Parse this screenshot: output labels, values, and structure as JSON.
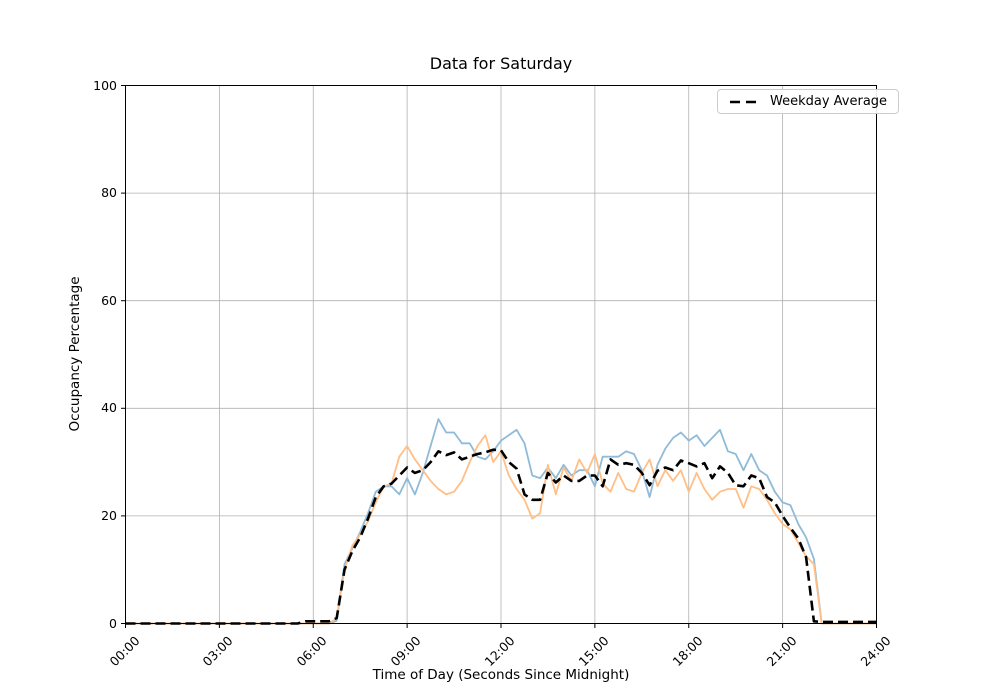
{
  "chart_data": {
    "type": "line",
    "title": "Data for Saturday",
    "xlabel": "Time of Day (Seconds Since Midnight)",
    "ylabel": "Occupancy Percentage",
    "grid": true,
    "legend_position": "upper right",
    "legend_entries": [
      "Weekday Average"
    ],
    "xlim_seconds": [
      0,
      86400
    ],
    "ylim": [
      0,
      100
    ],
    "x_tick_seconds": [
      0,
      10800,
      21600,
      32400,
      43200,
      54000,
      64800,
      75600,
      86400
    ],
    "x_tick_labels": [
      "00:00",
      "03:00",
      "06:00",
      "09:00",
      "12:00",
      "15:00",
      "18:00",
      "21:00",
      "24:00"
    ],
    "y_ticks": [
      0,
      20,
      40,
      60,
      80,
      100
    ],
    "x_step_seconds": 900,
    "x_unit": "seconds since midnight",
    "colors": {
      "grid": "#b0b0b0",
      "axis": "#000000"
    },
    "series": [
      {
        "name": "saturday-sample-1",
        "color": "#8FBBD9",
        "style": "solid",
        "in_legend": false,
        "values": [
          0,
          0,
          0,
          0,
          0,
          0,
          0,
          0,
          0,
          0,
          0,
          0,
          0,
          0,
          0,
          0,
          0,
          0,
          0,
          0,
          0,
          0,
          0,
          0,
          0,
          0,
          0,
          0.5,
          11,
          14,
          17,
          20.5,
          24.5,
          25.5,
          25.5,
          24,
          27,
          24,
          28,
          33,
          38,
          35.5,
          35.5,
          33.5,
          33.5,
          31,
          30.5,
          32,
          34,
          35,
          36,
          33.5,
          27.5,
          27,
          29,
          27,
          29.5,
          27.5,
          28.5,
          28.5,
          25.5,
          31,
          31,
          31,
          32,
          31.5,
          28.5,
          23.5,
          29.5,
          32.5,
          34.5,
          35.5,
          34,
          35,
          33,
          34.5,
          36,
          32,
          31.5,
          28.5,
          31.5,
          28.5,
          27.5,
          24.5,
          22.5,
          22,
          18.5,
          16,
          12,
          0,
          0,
          0,
          0,
          0,
          0,
          0,
          0
        ]
      },
      {
        "name": "saturday-sample-2",
        "color": "#FFBF86",
        "style": "solid",
        "in_legend": false,
        "values": [
          0,
          0,
          0,
          0,
          0,
          0,
          0,
          0,
          0,
          0,
          0,
          0,
          0,
          0,
          0,
          0,
          0,
          0,
          0,
          0,
          0,
          0,
          0,
          0,
          0,
          0,
          0,
          1,
          10,
          14.5,
          16.5,
          19,
          22.5,
          25.5,
          26,
          31,
          33,
          30.5,
          28.5,
          26.5,
          25,
          24,
          24.5,
          26.5,
          30,
          33,
          35,
          30,
          32,
          27.5,
          25,
          23,
          19.5,
          20.5,
          29.5,
          24,
          29,
          26.5,
          30.5,
          28,
          31.5,
          26,
          24.5,
          28,
          25,
          24.5,
          28,
          30.5,
          25.5,
          28.5,
          26.5,
          28.5,
          24.5,
          28,
          25,
          23,
          24.5,
          25,
          25,
          21.5,
          25.5,
          25,
          23,
          20.5,
          18.5,
          17.5,
          15,
          12.5,
          11,
          0,
          0,
          0,
          0,
          0,
          0,
          0,
          0
        ]
      },
      {
        "name": "weekday-average",
        "label": "Weekday Average",
        "color": "#000000",
        "style": "dashed",
        "in_legend": true,
        "values": [
          0,
          0,
          0,
          0,
          0,
          0,
          0,
          0,
          0,
          0,
          0,
          0,
          0,
          0,
          0,
          0,
          0,
          0,
          0,
          0,
          0,
          0,
          0,
          0.4,
          0.4,
          0.4,
          0.4,
          1,
          10,
          13.5,
          16,
          19.5,
          23.5,
          25.5,
          26,
          27.5,
          29,
          28,
          28.5,
          30,
          32,
          31.3,
          31.8,
          30.5,
          31,
          31.5,
          31.8,
          32.3,
          32.2,
          30,
          28.8,
          24,
          23,
          23,
          28,
          26.2,
          27.5,
          26.5,
          26.5,
          27.5,
          27.5,
          25.5,
          30.5,
          29.5,
          29.8,
          29.5,
          28,
          25.7,
          28.4,
          29,
          28.5,
          30.3,
          29.8,
          29.2,
          29.8,
          27,
          29.2,
          28,
          25.7,
          25.5,
          27.5,
          27,
          23.5,
          22.5,
          20,
          17.8,
          15.8,
          12.3,
          0.4,
          0.3,
          0.3,
          0.3,
          0.3,
          0.3,
          0.3,
          0.3,
          0.3
        ]
      }
    ]
  }
}
